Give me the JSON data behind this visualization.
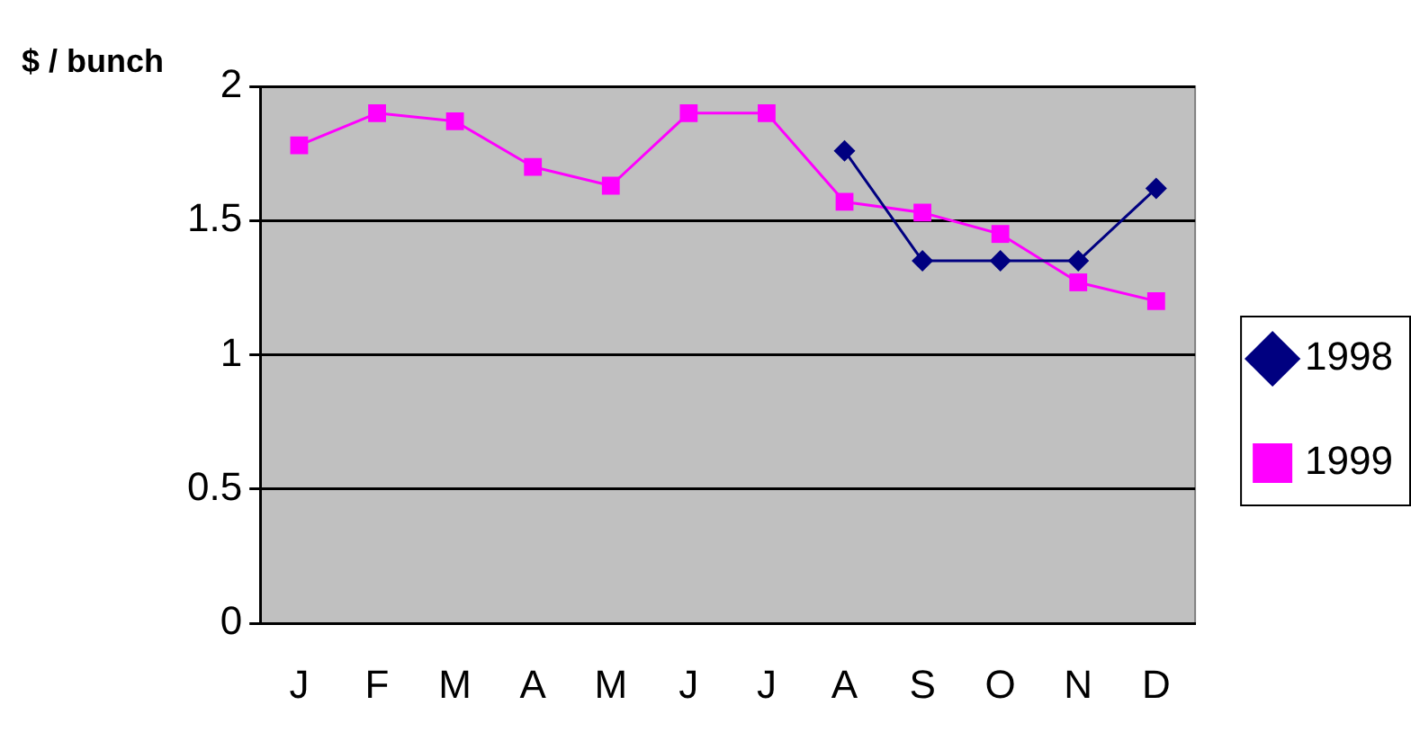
{
  "chart_data": {
    "type": "line",
    "ylabel": "$ / bunch",
    "categories": [
      "J",
      "F",
      "M",
      "A",
      "M",
      "J",
      "J",
      "A",
      "S",
      "O",
      "N",
      "D"
    ],
    "series": [
      {
        "name": "1998",
        "color": "#000080",
        "marker": "diamond",
        "values": [
          null,
          null,
          null,
          null,
          null,
          null,
          null,
          1.76,
          1.35,
          1.35,
          1.35,
          1.62
        ]
      },
      {
        "name": "1999",
        "color": "#ff00ff",
        "marker": "square",
        "values": [
          1.78,
          1.9,
          1.87,
          1.7,
          1.63,
          1.9,
          1.9,
          1.57,
          1.53,
          1.45,
          1.27,
          1.2
        ]
      }
    ],
    "ylim": [
      0,
      2
    ],
    "yticks": [
      0,
      0.5,
      1,
      1.5,
      2
    ],
    "grid": "y",
    "legend": "right"
  }
}
